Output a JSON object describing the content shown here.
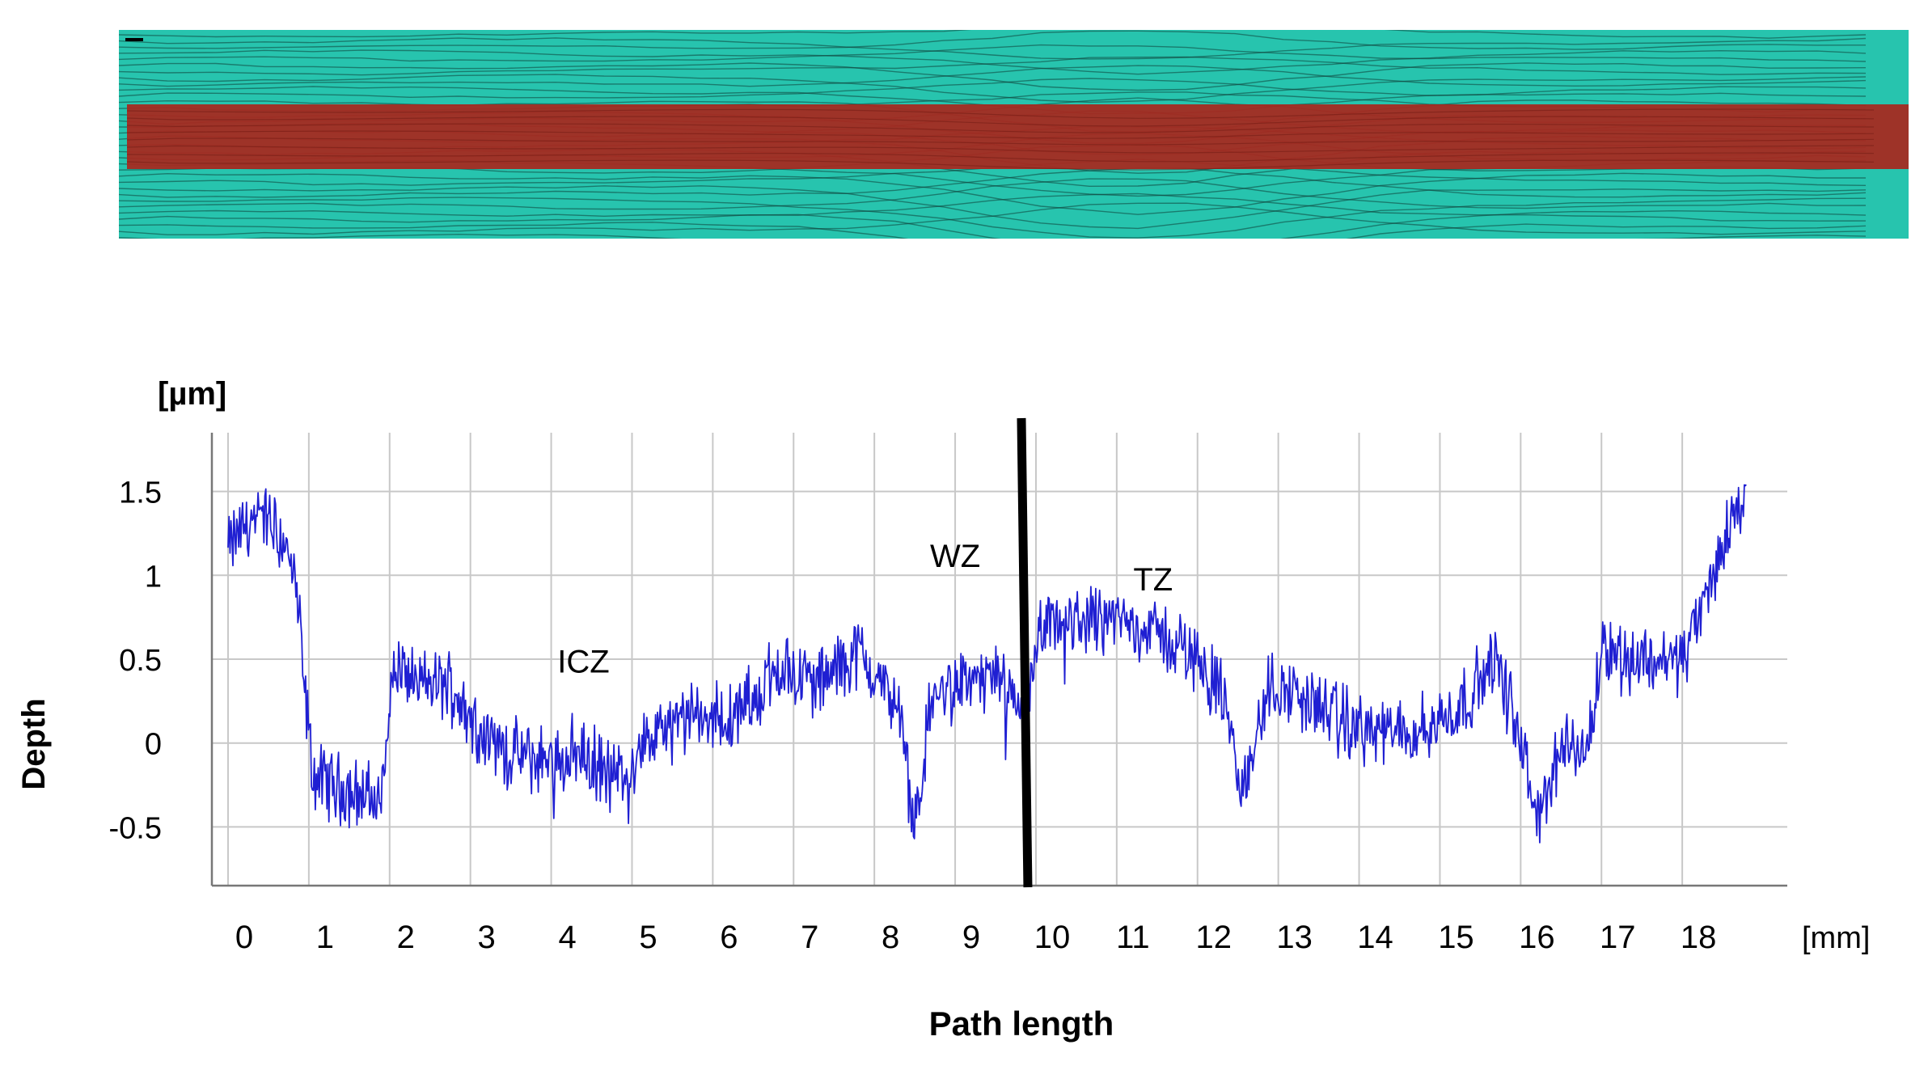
{
  "micrograph": {
    "description_colors": {
      "background": "#27c4ae",
      "path_band": "#a8281e",
      "dark_lines": "#0e3f38"
    }
  },
  "chart_data": {
    "type": "line",
    "title": "",
    "xlabel": "Path length",
    "ylabel": "Depth",
    "x_unit": "[mm]",
    "y_unit": "[µm]",
    "xlim": [
      -0.2,
      19.3
    ],
    "ylim": [
      -0.85,
      1.85
    ],
    "x_ticks": [
      "0",
      "1",
      "2",
      "3",
      "4",
      "5",
      "6",
      "7",
      "8",
      "9",
      "10",
      "11",
      "12",
      "13",
      "14",
      "15",
      "16",
      "17",
      "18"
    ],
    "y_ticks": [
      "1.5",
      "1",
      "0.5",
      "0",
      "-0.5"
    ],
    "y_tick_values": [
      1.5,
      1,
      0.5,
      0,
      -0.5
    ],
    "grid": true,
    "line_color": "#1f1fd2",
    "divider": {
      "x_top": 9.82,
      "x_bottom": 9.9,
      "color": "#000000"
    },
    "annotations": [
      {
        "text": "ICZ",
        "x": 4.4,
        "y": 0.42
      },
      {
        "text": "WZ",
        "x": 9.0,
        "y": 1.05
      },
      {
        "text": "TZ",
        "x": 11.45,
        "y": 0.91
      }
    ],
    "series": [
      {
        "x": [
          0.0,
          0.2,
          0.45,
          0.7,
          0.85,
          0.95,
          1.05,
          1.3,
          1.6,
          1.9,
          2.0,
          2.1,
          2.4,
          2.75,
          3.0,
          3.4,
          3.8,
          4.3,
          4.8,
          5.3,
          5.8,
          6.3,
          6.8,
          7.3,
          7.8,
          8.3,
          8.5,
          8.7,
          9.0,
          9.5,
          9.75,
          9.95,
          10.05,
          10.3,
          10.8,
          11.3,
          11.7,
          12.0,
          12.3,
          12.55,
          12.9,
          13.4,
          13.9,
          14.4,
          14.9,
          15.3,
          15.7,
          16.0,
          16.2,
          16.5,
          16.85,
          17.0,
          17.3,
          17.7,
          18.0,
          18.2,
          18.4,
          18.6,
          18.8
        ],
        "y": [
          1.15,
          1.3,
          1.35,
          1.2,
          0.9,
          0.3,
          -0.2,
          -0.25,
          -0.3,
          -0.35,
          0.3,
          0.45,
          0.35,
          0.35,
          0.15,
          -0.05,
          -0.1,
          -0.05,
          -0.2,
          0.05,
          0.15,
          0.15,
          0.45,
          0.35,
          0.55,
          0.2,
          -0.55,
          0.25,
          0.35,
          0.4,
          0.15,
          0.3,
          0.65,
          0.7,
          0.75,
          0.7,
          0.6,
          0.5,
          0.3,
          -0.3,
          0.35,
          0.25,
          0.1,
          0.05,
          0.1,
          0.25,
          0.5,
          0.0,
          -0.45,
          -0.05,
          0.0,
          0.6,
          0.5,
          0.5,
          0.5,
          0.75,
          1.0,
          1.35,
          1.45
        ]
      }
    ]
  }
}
